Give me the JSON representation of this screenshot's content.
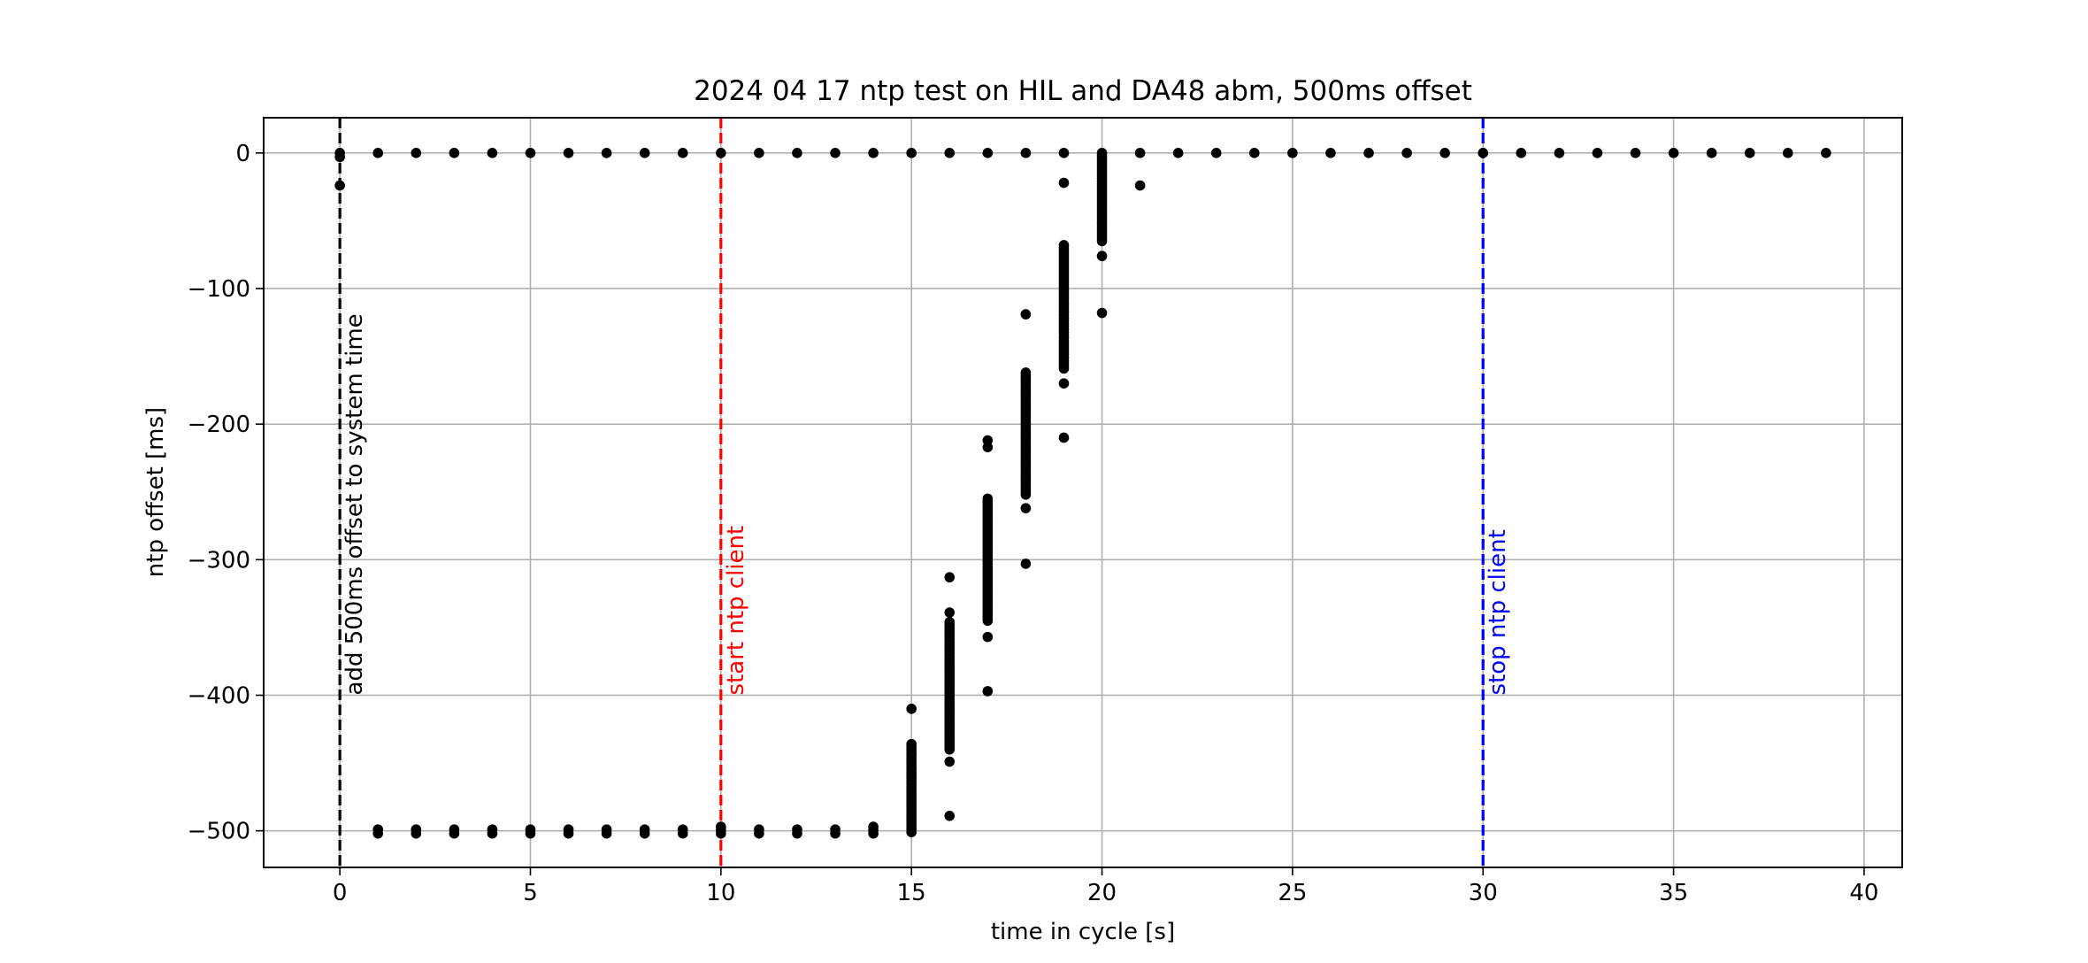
{
  "chart_data": {
    "type": "scatter",
    "title": "2024 04 17 ntp test on HIL and DA48 abm, 500ms offset",
    "xlabel": "time in cycle [s]",
    "ylabel": "ntp offset [ms]",
    "xlim": [
      -2,
      41
    ],
    "ylim": [
      -527,
      26
    ],
    "grid": true,
    "legend": "none",
    "xticks": [
      0,
      5,
      10,
      15,
      20,
      25,
      30,
      35,
      40
    ],
    "yticks": [
      0,
      -100,
      -200,
      -300,
      -400,
      -500
    ],
    "marker_color": "#000000",
    "series": [
      {
        "name": "ntp offset",
        "clusters": [
          {
            "x": 0,
            "y_min": -3,
            "y_max": 0
          },
          {
            "x": 0,
            "y_min": -24,
            "y_max": -24
          },
          {
            "x": 1,
            "y_min": 0,
            "y_max": 0
          },
          {
            "x": 1,
            "y_min": -502,
            "y_max": -499
          },
          {
            "x": 2,
            "y_min": 0,
            "y_max": 0
          },
          {
            "x": 2,
            "y_min": -502,
            "y_max": -499
          },
          {
            "x": 3,
            "y_min": 0,
            "y_max": 0
          },
          {
            "x": 3,
            "y_min": -502,
            "y_max": -499
          },
          {
            "x": 4,
            "y_min": 0,
            "y_max": 0
          },
          {
            "x": 4,
            "y_min": -502,
            "y_max": -499
          },
          {
            "x": 5,
            "y_min": 0,
            "y_max": 0
          },
          {
            "x": 5,
            "y_min": -502,
            "y_max": -499
          },
          {
            "x": 6,
            "y_min": 0,
            "y_max": 0
          },
          {
            "x": 6,
            "y_min": -502,
            "y_max": -499
          },
          {
            "x": 7,
            "y_min": 0,
            "y_max": 0
          },
          {
            "x": 7,
            "y_min": -502,
            "y_max": -499
          },
          {
            "x": 8,
            "y_min": 0,
            "y_max": 0
          },
          {
            "x": 8,
            "y_min": -502,
            "y_max": -499
          },
          {
            "x": 9,
            "y_min": 0,
            "y_max": 0
          },
          {
            "x": 9,
            "y_min": -502,
            "y_max": -499
          },
          {
            "x": 10,
            "y_min": 0,
            "y_max": 0
          },
          {
            "x": 10,
            "y_min": -502,
            "y_max": -497
          },
          {
            "x": 11,
            "y_min": 0,
            "y_max": 0
          },
          {
            "x": 11,
            "y_min": -502,
            "y_max": -499
          },
          {
            "x": 12,
            "y_min": 0,
            "y_max": 0
          },
          {
            "x": 12,
            "y_min": -502,
            "y_max": -499
          },
          {
            "x": 13,
            "y_min": 0,
            "y_max": 0
          },
          {
            "x": 13,
            "y_min": -502,
            "y_max": -499
          },
          {
            "x": 14,
            "y_min": 0,
            "y_max": 0
          },
          {
            "x": 14,
            "y_min": -502,
            "y_max": -497
          },
          {
            "x": 15,
            "y_min": 0,
            "y_max": 0
          },
          {
            "x": 15,
            "y_min": -501,
            "y_max": -436
          },
          {
            "x": 15,
            "y_min": -410,
            "y_max": -410
          },
          {
            "x": 16,
            "y_min": 0,
            "y_max": 0
          },
          {
            "x": 16,
            "y_min": -440,
            "y_max": -346
          },
          {
            "x": 16,
            "y_min": -313,
            "y_max": -313
          },
          {
            "x": 16,
            "y_min": -339,
            "y_max": -339
          },
          {
            "x": 16,
            "y_min": -449,
            "y_max": -449
          },
          {
            "x": 16,
            "y_min": -489,
            "y_max": -489
          },
          {
            "x": 17,
            "y_min": 0,
            "y_max": 0
          },
          {
            "x": 17,
            "y_min": -345,
            "y_max": -255
          },
          {
            "x": 17,
            "y_min": -212,
            "y_max": -212
          },
          {
            "x": 17,
            "y_min": -217,
            "y_max": -217
          },
          {
            "x": 17,
            "y_min": -357,
            "y_max": -357
          },
          {
            "x": 17,
            "y_min": -397,
            "y_max": -397
          },
          {
            "x": 18,
            "y_min": 0,
            "y_max": 0
          },
          {
            "x": 18,
            "y_min": -252,
            "y_max": -162
          },
          {
            "x": 18,
            "y_min": -119,
            "y_max": -119
          },
          {
            "x": 18,
            "y_min": -262,
            "y_max": -262
          },
          {
            "x": 18,
            "y_min": -303,
            "y_max": -303
          },
          {
            "x": 19,
            "y_min": 0,
            "y_max": 0
          },
          {
            "x": 19,
            "y_min": -159,
            "y_max": -68
          },
          {
            "x": 19,
            "y_min": -22,
            "y_max": -22
          },
          {
            "x": 19,
            "y_min": -170,
            "y_max": -170
          },
          {
            "x": 19,
            "y_min": -210,
            "y_max": -210
          },
          {
            "x": 20,
            "y_min": -65,
            "y_max": 0
          },
          {
            "x": 20,
            "y_min": -76,
            "y_max": -76
          },
          {
            "x": 20,
            "y_min": -118,
            "y_max": -118
          },
          {
            "x": 21,
            "y_min": 0,
            "y_max": 0
          },
          {
            "x": 21,
            "y_min": -24,
            "y_max": -24
          },
          {
            "x": 22,
            "y_min": 0,
            "y_max": 0
          },
          {
            "x": 23,
            "y_min": 0,
            "y_max": 0
          },
          {
            "x": 24,
            "y_min": 0,
            "y_max": 0
          },
          {
            "x": 25,
            "y_min": 0,
            "y_max": 0
          },
          {
            "x": 26,
            "y_min": 0,
            "y_max": 0
          },
          {
            "x": 27,
            "y_min": 0,
            "y_max": 0
          },
          {
            "x": 28,
            "y_min": 0,
            "y_max": 0
          },
          {
            "x": 29,
            "y_min": 0,
            "y_max": 0
          },
          {
            "x": 30,
            "y_min": 0,
            "y_max": 0
          },
          {
            "x": 31,
            "y_min": 0,
            "y_max": 0
          },
          {
            "x": 32,
            "y_min": 0,
            "y_max": 0
          },
          {
            "x": 33,
            "y_min": 0,
            "y_max": 0
          },
          {
            "x": 34,
            "y_min": 0,
            "y_max": 0
          },
          {
            "x": 35,
            "y_min": 0,
            "y_max": 0
          },
          {
            "x": 36,
            "y_min": 0,
            "y_max": 0
          },
          {
            "x": 37,
            "y_min": 0,
            "y_max": 0
          },
          {
            "x": 38,
            "y_min": 0,
            "y_max": 0
          },
          {
            "x": 39,
            "y_min": 0,
            "y_max": 0
          }
        ]
      }
    ],
    "vertical_lines": [
      {
        "x": 0,
        "color": "#000000",
        "style": "dashed",
        "label": "add 500ms offset to system time"
      },
      {
        "x": 10,
        "color": "#ff0000",
        "style": "dashed",
        "label": "start ntp client"
      },
      {
        "x": 30,
        "color": "#0000ff",
        "style": "dashed",
        "label": "stop ntp client"
      }
    ]
  }
}
